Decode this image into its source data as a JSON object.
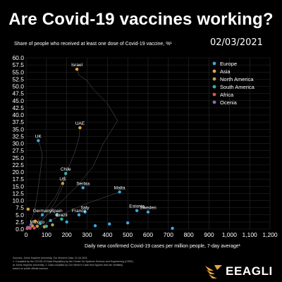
{
  "title": "Are Covid-19 vaccines working?",
  "subtitle": "Share of people who received at least one dose of Covid-19 vaccine, %¹",
  "date": "02/03/2021",
  "xlabel": "Daily new confirmed Covid-19 cases per million people, 7-day average¹",
  "sources": [
    "Sources: Johns Hopkins University, Our World in Data, 01.04.2021",
    "1. Compiled by the COVID-19 Data Repository by the Center for Systems Science and Engineering (CSSE)",
    "at Johns Hopkins University; 2. Data compiled by Our World in Data from figures that are verifiably",
    "based on public official sources."
  ],
  "brand": "EEAGLI",
  "chart_data": {
    "type": "scatter",
    "title": "Are Covid-19 vaccines working?",
    "xlabel": "Daily new confirmed Covid-19 cases per million people, 7-day average¹",
    "ylabel": "Share of people who received at least one dose of Covid-19 vaccine, %¹",
    "xlim": [
      0,
      1200
    ],
    "ylim": [
      0,
      60
    ],
    "x_ticks": [
      "0",
      "100",
      "200",
      "300",
      "400",
      "500",
      "600",
      "700",
      "800",
      "900",
      "1,000",
      "1,100",
      "1,200"
    ],
    "y_ticks": [
      "0.0",
      "2.5",
      "5.0",
      "7.5",
      "10.0",
      "12.5",
      "15.0",
      "17.5",
      "20.0",
      "22.5",
      "25.0",
      "27.5",
      "30.0",
      "32.5",
      "35.0",
      "37.5",
      "40.0",
      "42.5",
      "45.0",
      "47.5",
      "50.0",
      "52.5",
      "55.0",
      "57.5",
      "60.0"
    ],
    "grid": true,
    "legend_position": "top-right",
    "legend": [
      {
        "name": "Europe",
        "color": "#3aa8e0"
      },
      {
        "name": "Asia",
        "color": "#e8a33b"
      },
      {
        "name": "North America",
        "color": "#b8a050"
      },
      {
        "name": "South America",
        "color": "#2fb5a8"
      },
      {
        "name": "Africa",
        "color": "#d9534f"
      },
      {
        "name": "Ocenia",
        "color": "#8a6bbf"
      }
    ],
    "points": [
      {
        "label": "Israel",
        "x": 250,
        "y": 56,
        "region": "Asia"
      },
      {
        "label": "UAE",
        "x": 265,
        "y": 35.5,
        "region": "Asia"
      },
      {
        "label": "UK",
        "x": 60,
        "y": 31,
        "region": "Europe"
      },
      {
        "label": "Chile",
        "x": 195,
        "y": 19.5,
        "region": "South America"
      },
      {
        "label": "US",
        "x": 180,
        "y": 16,
        "region": "North America"
      },
      {
        "label": "Serbia",
        "x": 280,
        "y": 14.5,
        "region": "Europe"
      },
      {
        "label": "Malta",
        "x": 460,
        "y": 13,
        "region": "Europe"
      },
      {
        "label": "Estonia",
        "x": 545,
        "y": 6.5,
        "region": "Europe"
      },
      {
        "label": "Sweden",
        "x": 600,
        "y": 6,
        "region": "Europe"
      },
      {
        "label": "Italy",
        "x": 290,
        "y": 6,
        "region": "Europe"
      },
      {
        "label": "Germany",
        "x": 80,
        "y": 5,
        "region": "Europe"
      },
      {
        "label": "Spain",
        "x": 150,
        "y": 5,
        "region": "Europe"
      },
      {
        "label": "France",
        "x": 260,
        "y": 5,
        "region": "Europe"
      },
      {
        "label": "Brazil",
        "x": 175,
        "y": 3.5,
        "region": "South America"
      },
      {
        "label": "Mexico",
        "x": 55,
        "y": 1,
        "region": "North America"
      },
      {
        "label": "",
        "x": 720,
        "y": 0.3,
        "region": "Europe"
      },
      {
        "label": "",
        "x": 410,
        "y": 1.8,
        "region": "Europe"
      },
      {
        "label": "",
        "x": 340,
        "y": 1.2,
        "region": "Europe"
      },
      {
        "label": "",
        "x": 500,
        "y": 2.2,
        "region": "Europe"
      },
      {
        "label": "",
        "x": 200,
        "y": 2.5,
        "region": "Europe"
      },
      {
        "label": "",
        "x": 120,
        "y": 3,
        "region": "Europe"
      },
      {
        "label": "",
        "x": 30,
        "y": 1.2,
        "region": "Asia"
      },
      {
        "label": "",
        "x": 15,
        "y": 0.5,
        "region": "Asia"
      },
      {
        "label": "",
        "x": 45,
        "y": 2.8,
        "region": "Asia"
      },
      {
        "label": "",
        "x": 10,
        "y": 7,
        "region": "Asia"
      },
      {
        "label": "",
        "x": 90,
        "y": 0.8,
        "region": "North America"
      },
      {
        "label": "",
        "x": 130,
        "y": 1.5,
        "region": "North America"
      },
      {
        "label": "",
        "x": 70,
        "y": 2,
        "region": "South America"
      },
      {
        "label": "",
        "x": 100,
        "y": 1,
        "region": "South America"
      },
      {
        "label": "",
        "x": 20,
        "y": 0.3,
        "region": "Africa"
      },
      {
        "label": "",
        "x": 5,
        "y": 0.2,
        "region": "Africa"
      },
      {
        "label": "",
        "x": 40,
        "y": 0.4,
        "region": "Africa"
      },
      {
        "label": "",
        "x": 8,
        "y": 0.6,
        "region": "Ocenia"
      },
      {
        "label": "",
        "x": 25,
        "y": 1.6,
        "region": "Ocenia"
      }
    ],
    "trails": [
      {
        "region": "Asia",
        "points": [
          [
            10,
            0
          ],
          [
            60,
            2
          ],
          [
            150,
            8
          ],
          [
            250,
            15
          ],
          [
            330,
            22
          ],
          [
            380,
            30
          ],
          [
            450,
            38
          ],
          [
            400,
            44
          ],
          [
            330,
            49
          ],
          [
            300,
            52
          ],
          [
            260,
            54
          ],
          [
            250,
            56
          ]
        ]
      },
      {
        "region": "Europe",
        "points": [
          [
            5,
            0
          ],
          [
            20,
            2
          ],
          [
            40,
            6
          ],
          [
            55,
            12
          ],
          [
            70,
            20
          ],
          [
            80,
            26
          ],
          [
            70,
            29
          ],
          [
            60,
            31
          ]
        ]
      },
      {
        "region": "Asia",
        "points": [
          [
            20,
            0
          ],
          [
            80,
            5
          ],
          [
            150,
            12
          ],
          [
            200,
            20
          ],
          [
            240,
            27
          ],
          [
            260,
            32
          ],
          [
            265,
            35.5
          ]
        ]
      },
      {
        "region": "Europe",
        "points": [
          [
            60,
            0
          ],
          [
            120,
            3
          ],
          [
            200,
            6
          ],
          [
            300,
            9
          ],
          [
            420,
            12
          ],
          [
            460,
            13
          ]
        ]
      },
      {
        "region": "South America",
        "points": [
          [
            40,
            0
          ],
          [
            90,
            4
          ],
          [
            140,
            9
          ],
          [
            180,
            15
          ],
          [
            195,
            19.5
          ]
        ]
      }
    ]
  }
}
